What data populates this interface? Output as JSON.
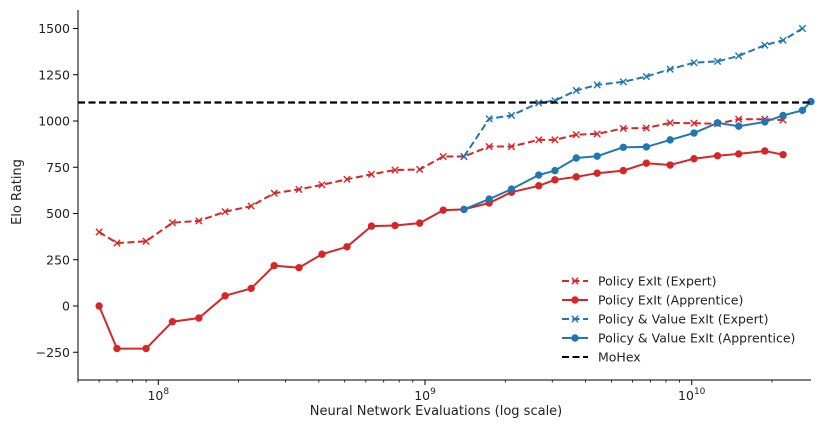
{
  "chart_data": {
    "type": "line",
    "title": "",
    "xlabel": "Neural Network Evaluations (log scale)",
    "ylabel": "Elo Rating",
    "xscale": "log",
    "xlim": [
      50000000,
      28000000000
    ],
    "ylim": [
      -400,
      1600
    ],
    "grid": false,
    "legend_placement": "lower-right",
    "x_ticks": [
      {
        "value": 100000000,
        "label": "10",
        "exp": "8"
      },
      {
        "value": 1000000000,
        "label": "10",
        "exp": "9"
      },
      {
        "value": 10000000000,
        "label": "10",
        "exp": "10"
      }
    ],
    "y_ticks": [
      {
        "value": -250,
        "label": "−250"
      },
      {
        "value": 0,
        "label": "0"
      },
      {
        "value": 250,
        "label": "250"
      },
      {
        "value": 500,
        "label": "500"
      },
      {
        "value": 750,
        "label": "750"
      },
      {
        "value": 1000,
        "label": "1000"
      },
      {
        "value": 1250,
        "label": "1250"
      },
      {
        "value": 1500,
        "label": "1500"
      }
    ],
    "series": [
      {
        "name": "Policy ExIt (Expert)",
        "color": "#d62728",
        "dash": "dashed",
        "marker": "x",
        "points": [
          [
            60000000,
            400
          ],
          [
            70000000,
            340
          ],
          [
            90000000,
            350
          ],
          [
            113000000,
            450
          ],
          [
            142000000,
            460
          ],
          [
            178000000,
            510
          ],
          [
            223000000,
            540
          ],
          [
            272000000,
            610
          ],
          [
            337000000,
            630
          ],
          [
            411000000,
            655
          ],
          [
            510000000,
            685
          ],
          [
            630000000,
            712
          ],
          [
            772000000,
            735
          ],
          [
            955000000,
            738
          ],
          [
            1170000000,
            808
          ],
          [
            1400000000,
            808
          ],
          [
            1740000000,
            862
          ],
          [
            2110000000,
            862
          ],
          [
            2670000000,
            898
          ],
          [
            3070000000,
            898
          ],
          [
            3690000000,
            926
          ],
          [
            4420000000,
            930
          ],
          [
            5540000000,
            960
          ],
          [
            6760000000,
            962
          ],
          [
            8300000000,
            990
          ],
          [
            10200000000,
            988
          ],
          [
            12500000000,
            985
          ],
          [
            15000000000,
            1010
          ],
          [
            18800000000,
            1010
          ],
          [
            22000000000,
            1005
          ]
        ]
      },
      {
        "name": "Policy ExIt (Apprentice)",
        "color": "#d62728",
        "dash": "solid",
        "marker": "o",
        "points": [
          [
            60000000,
            0
          ],
          [
            70000000,
            -230
          ],
          [
            90000000,
            -230
          ],
          [
            113000000,
            -85
          ],
          [
            142000000,
            -65
          ],
          [
            178000000,
            55
          ],
          [
            223000000,
            95
          ],
          [
            272000000,
            218
          ],
          [
            337000000,
            207
          ],
          [
            411000000,
            280
          ],
          [
            510000000,
            320
          ],
          [
            630000000,
            432
          ],
          [
            772000000,
            435
          ],
          [
            955000000,
            448
          ],
          [
            1170000000,
            518
          ],
          [
            1400000000,
            522
          ],
          [
            1740000000,
            557
          ],
          [
            2110000000,
            615
          ],
          [
            2670000000,
            650
          ],
          [
            3070000000,
            682
          ],
          [
            3690000000,
            698
          ],
          [
            4420000000,
            718
          ],
          [
            5540000000,
            732
          ],
          [
            6760000000,
            772
          ],
          [
            8300000000,
            762
          ],
          [
            10200000000,
            796
          ],
          [
            12500000000,
            812
          ],
          [
            15000000000,
            822
          ],
          [
            18800000000,
            838
          ],
          [
            22000000000,
            818
          ]
        ]
      },
      {
        "name": "Policy & Value ExIt (Expert)",
        "color": "#1f77b4",
        "dash": "dashed",
        "marker": "x",
        "points": [
          [
            1400000000,
            808
          ],
          [
            1740000000,
            1012
          ],
          [
            2110000000,
            1030
          ],
          [
            2670000000,
            1098
          ],
          [
            3070000000,
            1110
          ],
          [
            3690000000,
            1165
          ],
          [
            4420000000,
            1195
          ],
          [
            5540000000,
            1212
          ],
          [
            6760000000,
            1240
          ],
          [
            8300000000,
            1280
          ],
          [
            10200000000,
            1315
          ],
          [
            12500000000,
            1322
          ],
          [
            15000000000,
            1352
          ],
          [
            18800000000,
            1410
          ],
          [
            22000000000,
            1436
          ],
          [
            26000000000,
            1500
          ]
        ]
      },
      {
        "name": "Policy & Value ExIt (Apprentice)",
        "color": "#1f77b4",
        "dash": "solid",
        "marker": "o",
        "points": [
          [
            1400000000,
            522
          ],
          [
            1740000000,
            578
          ],
          [
            2110000000,
            632
          ],
          [
            2670000000,
            708
          ],
          [
            3070000000,
            732
          ],
          [
            3690000000,
            800
          ],
          [
            4420000000,
            810
          ],
          [
            5540000000,
            858
          ],
          [
            6760000000,
            860
          ],
          [
            8300000000,
            898
          ],
          [
            10200000000,
            935
          ],
          [
            12500000000,
            990
          ],
          [
            15000000000,
            972
          ],
          [
            18800000000,
            995
          ],
          [
            22000000000,
            1030
          ],
          [
            26000000000,
            1058
          ],
          [
            28000000000,
            1105
          ]
        ]
      },
      {
        "name": "MoHex",
        "color": "#000000",
        "dash": "dashed",
        "marker": "none",
        "hline": 1100
      }
    ]
  }
}
